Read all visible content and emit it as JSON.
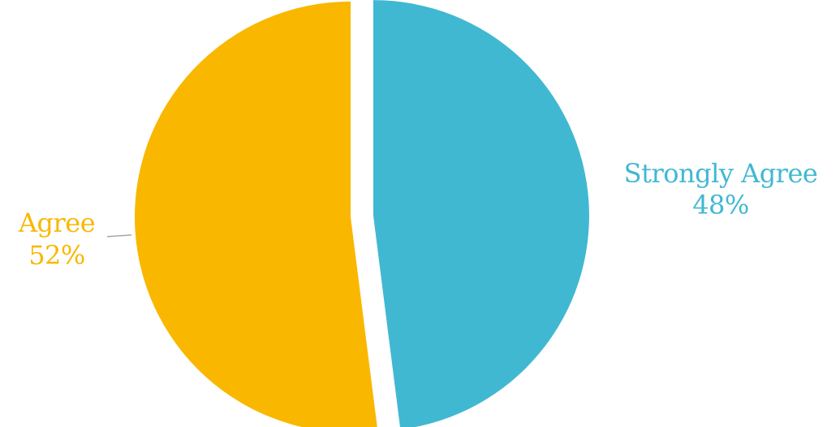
{
  "chart_data": {
    "type": "pie",
    "title": "",
    "categories": [
      "Strongly Agree",
      "Agree"
    ],
    "values": [
      48,
      52
    ],
    "labels": [
      {
        "name": "Strongly Agree",
        "percent": "48%"
      },
      {
        "name": "Agree",
        "percent": "52%"
      }
    ],
    "colors": [
      "#41B8D2",
      "#F9B700"
    ],
    "legend": "none",
    "start_angle_deg": 0,
    "direction": "clockwise",
    "exploded": true
  }
}
